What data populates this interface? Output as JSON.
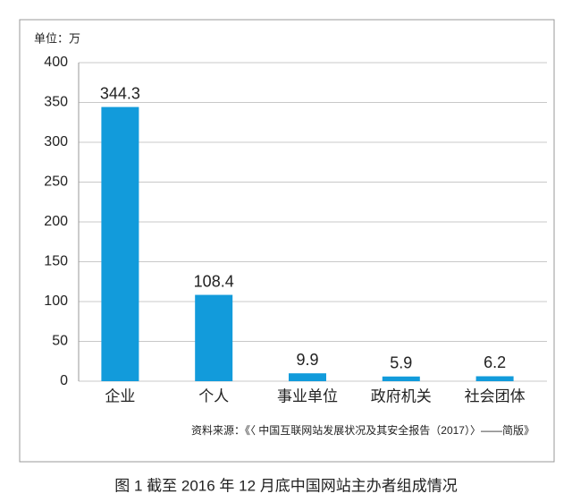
{
  "chart_data": {
    "type": "bar",
    "unit_label": "单位：万",
    "categories": [
      "企业",
      "个人",
      "事业单位",
      "政府机关",
      "社会团体"
    ],
    "values": [
      344.3,
      108.4,
      9.9,
      5.9,
      6.2
    ],
    "color": "#129bdb",
    "ylim": [
      0,
      400
    ],
    "yticks": [
      0,
      50,
      100,
      150,
      200,
      250,
      300,
      350,
      400
    ],
    "grid": true,
    "source": "资料来源：《〈 中国互联网站发展状况及其安全报告（2017）〉——简版》",
    "caption": "图 1  截至 2016 年 12 月底中国网站主办者组成情况"
  }
}
